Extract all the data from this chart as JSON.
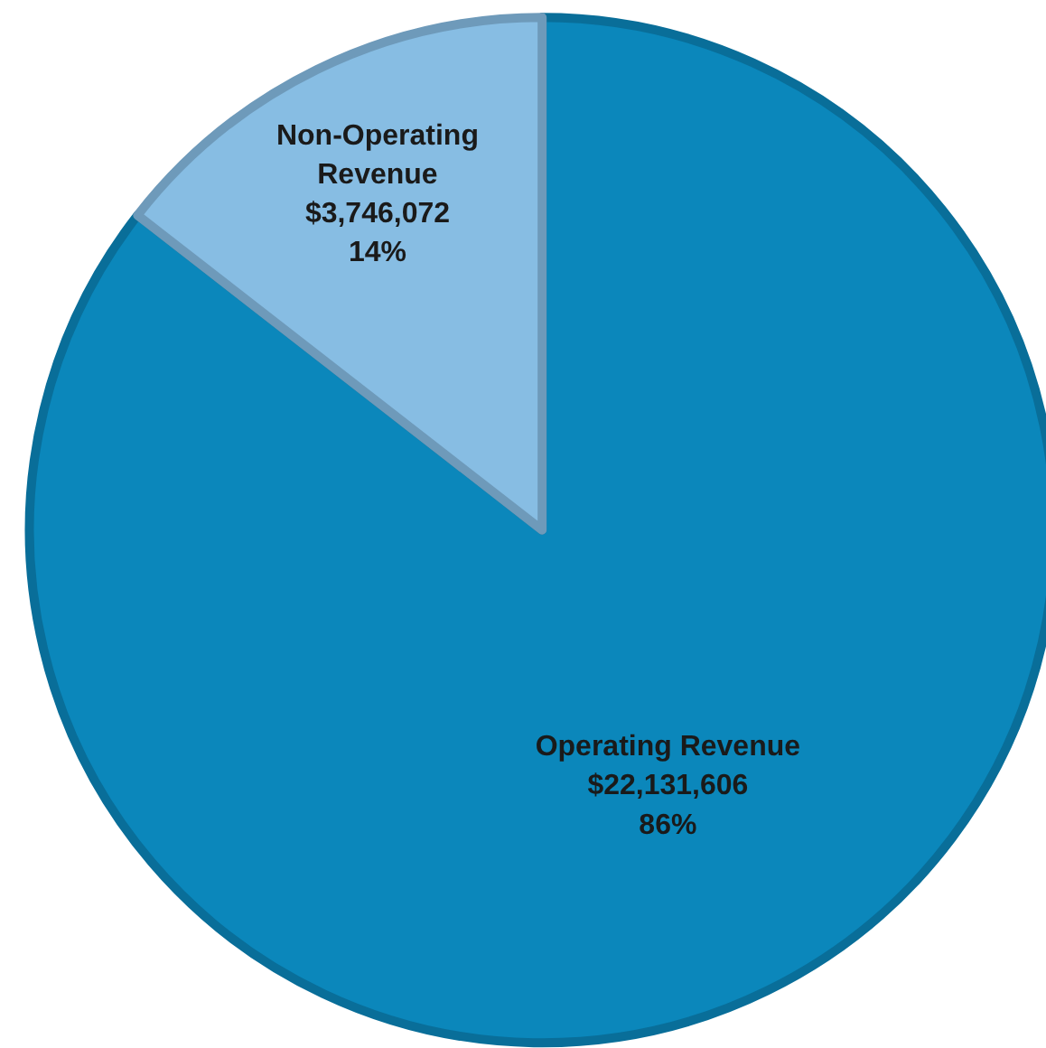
{
  "chart_data": {
    "type": "pie",
    "categories": [
      "Operating Revenue",
      "Non-Operating Revenue"
    ],
    "values": [
      22131606,
      3746072
    ],
    "colors": [
      "#0b87bb",
      "#87bde3"
    ],
    "value_labels": [
      "$22,131,606\n86%",
      "$3,746,072\n14%"
    ]
  }
}
